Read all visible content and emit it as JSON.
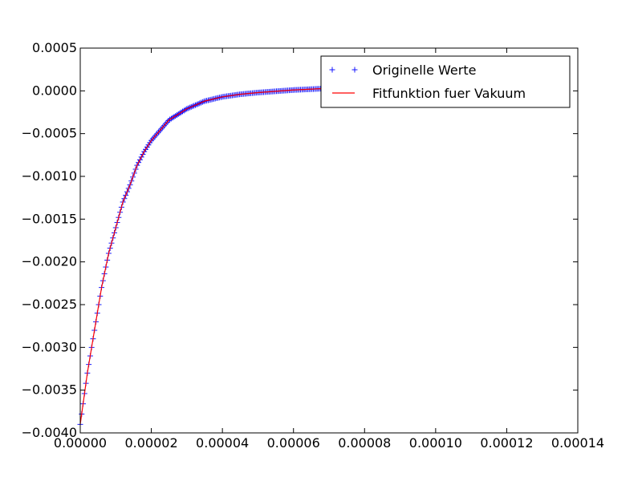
{
  "chart_data": {
    "type": "scatter",
    "title": "",
    "xlabel": "",
    "ylabel": "",
    "xlim": [
      0,
      0.00014
    ],
    "ylim": [
      -0.004,
      0.0005
    ],
    "x_ticks": [
      0,
      2e-05,
      4e-05,
      6e-05,
      8e-05,
      0.0001,
      0.00012,
      0.00014
    ],
    "x_tick_labels": [
      "0.00000",
      "0.00002",
      "0.00004",
      "0.00006",
      "0.00008",
      "0.00010",
      "0.00012",
      "0.00014"
    ],
    "y_ticks": [
      0.0005,
      0,
      -0.0005,
      -0.001,
      -0.0015,
      -0.002,
      -0.0025,
      -0.003,
      -0.0035,
      -0.004
    ],
    "y_tick_labels": [
      "0.0005",
      "0.0000",
      "−0.0005",
      "−0.0010",
      "−0.0015",
      "−0.0020",
      "−0.0025",
      "−0.0030",
      "−0.0035",
      "−0.0040"
    ],
    "grid": false,
    "legend_position": "top-right",
    "series": [
      {
        "name": "Originelle Werte",
        "kind": "scatter",
        "marker": "+",
        "color": "#0000ff",
        "x": [
          0,
          2e-06,
          4e-06,
          6e-06,
          8e-06,
          1e-05,
          1.2e-05,
          1.4e-05,
          1.6e-05,
          1.8e-05,
          2e-05,
          2.5e-05,
          3e-05,
          3.5e-05,
          4e-05,
          4.5e-05,
          5e-05,
          6e-05,
          7e-05
        ],
        "y": [
          -0.0039,
          -0.0033,
          -0.0028,
          -0.0023,
          -0.0019,
          -0.0016,
          -0.0013,
          -0.0011,
          -0.00087,
          -0.00071,
          -0.00058,
          -0.00034,
          -0.00021,
          -0.00012,
          -7e-05,
          -4e-05,
          -2e-05,
          1e-05,
          3e-05
        ]
      },
      {
        "name": "Fitfunktion fuer Vakuum",
        "kind": "line",
        "color": "#ff0000",
        "x": [
          0,
          2e-06,
          4e-06,
          6e-06,
          8e-06,
          1e-05,
          1.2e-05,
          1.4e-05,
          1.6e-05,
          1.8e-05,
          2e-05,
          2.5e-05,
          3e-05,
          3.5e-05,
          4e-05,
          4.5e-05,
          5e-05,
          6e-05,
          7e-05
        ],
        "y": [
          -0.0039,
          -0.0033,
          -0.0028,
          -0.0023,
          -0.0019,
          -0.0016,
          -0.0013,
          -0.0011,
          -0.00087,
          -0.00071,
          -0.00058,
          -0.00034,
          -0.00021,
          -0.00012,
          -7e-05,
          -4e-05,
          -2e-05,
          1e-05,
          3e-05
        ]
      }
    ]
  }
}
